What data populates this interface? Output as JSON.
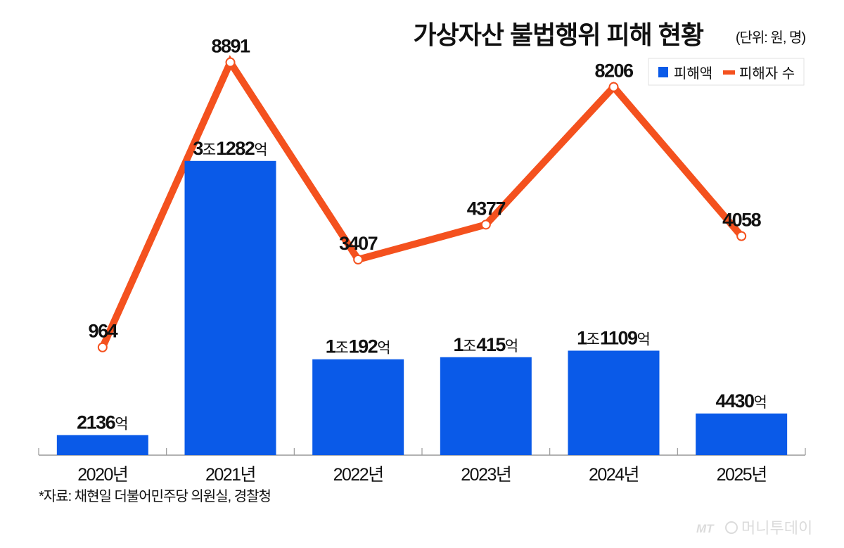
{
  "chart_data": {
    "type": "bar+line",
    "title": "가상자산 불법행위 피해 현황",
    "unit_note": "(단위: 원, 명)",
    "categories": [
      "2020년",
      "2021년",
      "2022년",
      "2023년",
      "2024년",
      "2025년"
    ],
    "series": [
      {
        "name": "피해액",
        "type": "bar",
        "color": "#0a5ae8",
        "values": [
          2136,
          31282,
          10192,
          10415,
          11109,
          4430
        ],
        "value_unit": "억",
        "labels": [
          "2136억",
          "3조1282억",
          "1조192억",
          "1조415억",
          "1조1109억",
          "4430억"
        ]
      },
      {
        "name": "피해자 수",
        "type": "line",
        "color": "#f4511e",
        "values": [
          964,
          8891,
          3407,
          4377,
          8206,
          4058
        ],
        "labels": [
          "964",
          "8891",
          "3407",
          "4377",
          "8206",
          "4058"
        ]
      }
    ],
    "legend": [
      "피해액",
      "피해자 수"
    ],
    "legend_position": "top-right",
    "grid": false
  },
  "source": "*자료: 채현일 더불어민주당 의원실, 경찰청",
  "watermark": "MT 머니투데이"
}
